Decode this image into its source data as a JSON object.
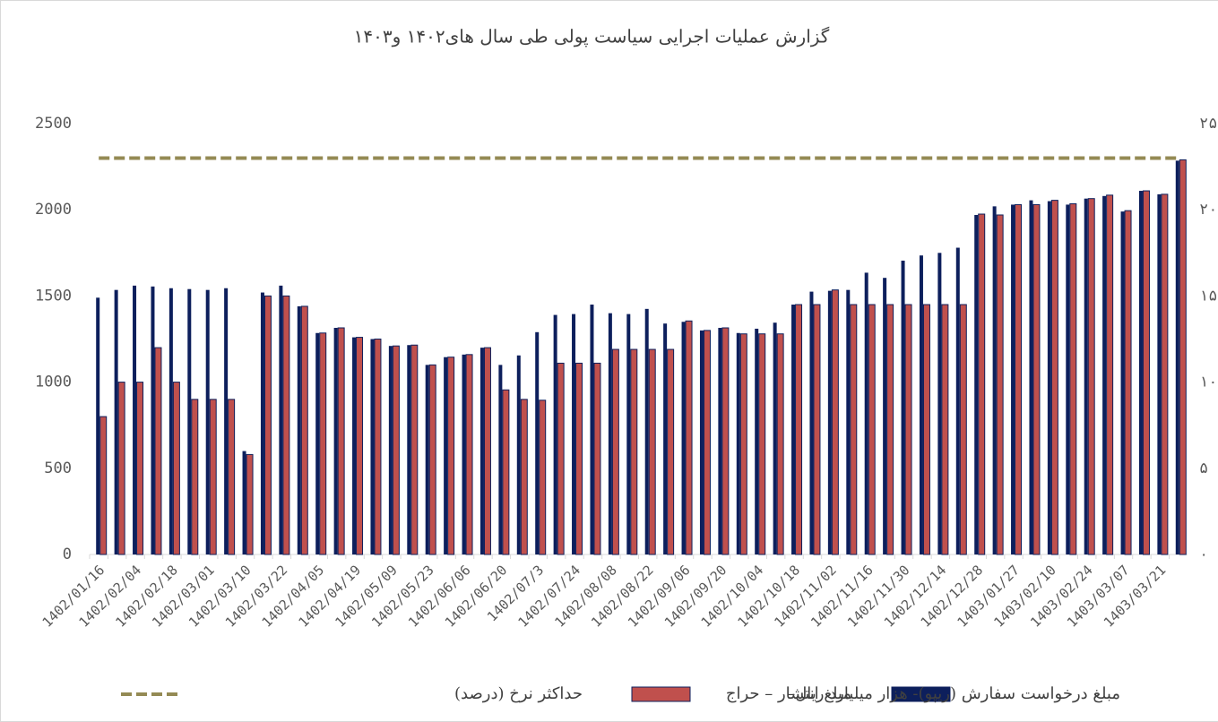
{
  "chart_data": {
    "type": "bar",
    "title": "گزارش عملیات اجرایی سیاست پولی طی سال های۱۴۰۲ و۱۴۰۳",
    "categories": [
      "1402/01/16",
      null,
      "1402/02/04",
      null,
      "1402/02/18",
      null,
      "1402/03/01",
      null,
      "1402/03/10",
      null,
      "1402/03/22",
      null,
      "1402/04/05",
      null,
      "1402/04/19",
      null,
      "1402/05/09",
      null,
      "1402/05/23",
      null,
      "1402/06/06",
      null,
      "1402/06/20",
      null,
      "1402/07/3",
      null,
      "1402/07/24",
      null,
      "1402/08/08",
      null,
      "1402/08/22",
      null,
      "1402/09/06",
      null,
      "1402/09/20",
      null,
      "1402/10/04",
      null,
      "1402/10/18",
      null,
      "1402/11/02",
      null,
      "1402/11/16",
      null,
      "1402/11/30",
      null,
      "1402/12/14",
      null,
      "1402/12/28",
      null,
      "1403/01/27",
      null,
      "1403/02/10",
      null,
      "1403/02/24",
      null,
      "1403/03/07",
      null,
      "1403/03/21",
      null
    ],
    "series": [
      {
        "name": "مبلغ درخواست سفارش (ریپو)- هزار میلیارد ریال–",
        "color": "#0d1f5c",
        "values": [
          1490,
          1535,
          1560,
          1555,
          1545,
          1540,
          1535,
          1545,
          600,
          1520,
          1560,
          1440,
          1285,
          1315,
          1260,
          1250,
          1210,
          1215,
          1100,
          1145,
          1160,
          1200,
          1100,
          1155,
          1290,
          1390,
          1395,
          1450,
          1400,
          1395,
          1425,
          1340,
          1350,
          1300,
          1315,
          1285,
          1310,
          1345,
          1450,
          1525,
          1530,
          1535,
          1635,
          1605,
          1705,
          1735,
          1750,
          1780,
          1970,
          2020,
          2030,
          2055,
          2050,
          2030,
          2065,
          2080,
          1990,
          2110,
          2090,
          2285
        ]
      },
      {
        "name": "مبلغ انتشار – حراج",
        "color": "#c0504d",
        "values": [
          800,
          1000,
          1000,
          1200,
          1000,
          900,
          900,
          900,
          580,
          1500,
          1500,
          1440,
          1285,
          1315,
          1260,
          1250,
          1210,
          1215,
          1100,
          1145,
          1160,
          1200,
          955,
          900,
          895,
          1110,
          1110,
          1110,
          1190,
          1190,
          1190,
          1190,
          1355,
          1300,
          1315,
          1280,
          1280,
          1280,
          1450,
          1450,
          1535,
          1450,
          1450,
          1450,
          1450,
          1450,
          1450,
          1450,
          1975,
          1970,
          2030,
          2030,
          2055,
          2035,
          2065,
          2085,
          1995,
          2110,
          2090,
          2290
        ]
      },
      {
        "name": "حداکثر نرخ (درصد)",
        "color": "#948a54",
        "axis": "y2",
        "style": "dashed",
        "values": [
          23,
          23,
          23,
          23,
          23,
          23,
          23,
          23,
          23,
          23,
          23,
          23,
          23,
          23,
          23,
          23,
          23,
          23,
          23,
          23,
          23,
          23,
          23,
          23,
          23,
          23,
          23,
          23,
          23,
          23,
          23,
          23,
          23,
          23,
          23,
          23,
          23,
          23,
          23,
          23,
          23,
          23,
          23,
          23,
          23,
          23,
          23,
          23,
          23,
          23,
          23,
          23,
          23,
          23,
          23,
          23,
          23,
          23,
          23,
          23
        ]
      }
    ],
    "ylim": [
      0,
      2500
    ],
    "yticks": [
      0,
      500,
      1000,
      1500,
      2000,
      2500
    ],
    "y2lim": [
      0,
      25
    ],
    "y2ticks": [
      {
        "value": 0,
        "label": "۰"
      },
      {
        "value": 5,
        "label": "۵"
      },
      {
        "value": 10,
        "label": "۱۰"
      },
      {
        "value": 15,
        "label": "۱۵"
      },
      {
        "value": 20,
        "label": "۲۰"
      },
      {
        "value": 25,
        "label": "۲۵"
      }
    ],
    "legend": "bottom"
  }
}
